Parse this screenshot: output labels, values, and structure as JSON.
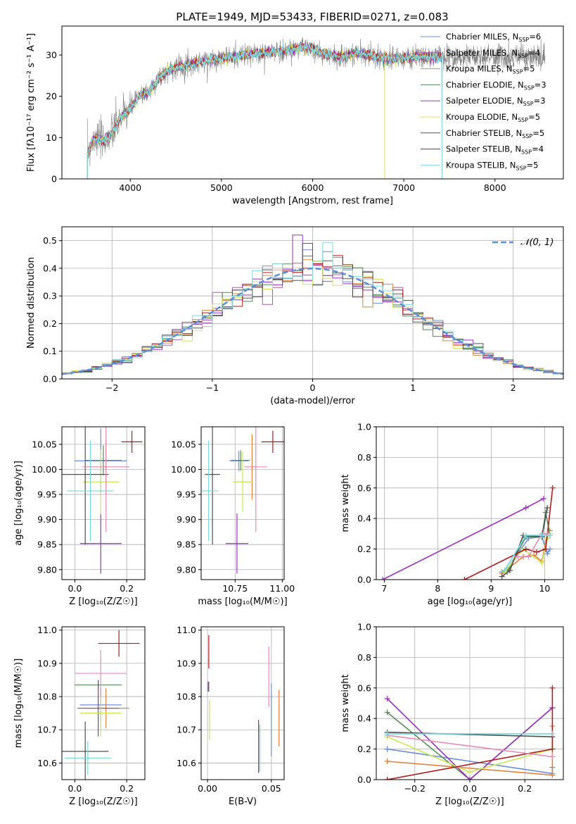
{
  "figure_title": "PLATE=1949, MJD=53433, FIBERID=0271, z=0.083",
  "model_colors": [
    "#6a8fd8",
    "#a65fb0",
    "#d98a3a",
    "#4f8a5a",
    "#9b30c0",
    "#d8e060",
    "#555555",
    "#b01c1c",
    "#80d8e0"
  ],
  "panel_colors": [
    "#6a8fd8",
    "#e07f3a",
    "#5a8a5a",
    "#9b30c0",
    "#c8e850",
    "#505050",
    "#b01c1c",
    "#e88ab8",
    "#70d8e0"
  ],
  "chart_data": [
    {
      "id": "spectrum",
      "type": "line",
      "xlabel": "wavelength [Angstrom, rest frame]",
      "ylabel": "Flux [fλ10⁻¹⁷ erg cm⁻² s⁻¹ A⁻¹]",
      "xlim": [
        3250,
        8750
      ],
      "ylim": [
        0,
        37
      ],
      "xticks": [
        4000,
        5000,
        6000,
        7000,
        8000
      ],
      "yticks": [
        0,
        10,
        20,
        30
      ],
      "grid": false,
      "legend_position": "top-right",
      "legend": [
        {
          "label": "Chabrier MILES, N",
          "sub": "SSP",
          "suffix": "=6"
        },
        {
          "label": "Salpeter MILES, N",
          "sub": "SSP",
          "suffix": "=4"
        },
        {
          "label": "Kroupa MILES, N",
          "sub": "SSP",
          "suffix": "=5"
        },
        {
          "label": "Chabrier ELODIE, N",
          "sub": "SSP",
          "suffix": "=3"
        },
        {
          "label": "Salpeter ELODIE, N",
          "sub": "SSP",
          "suffix": "=3"
        },
        {
          "label": "Kroupa ELODIE, N",
          "sub": "SSP",
          "suffix": "=5"
        },
        {
          "label": "Chabrier STELIB, N",
          "sub": "SSP",
          "suffix": "=5"
        },
        {
          "label": "Salpeter STELIB, N",
          "sub": "SSP",
          "suffix": "=4"
        },
        {
          "label": "Kroupa STELIB, N",
          "sub": "SSP",
          "suffix": "=5"
        }
      ],
      "continuum": {
        "x": [
          3530,
          3600,
          3700,
          3800,
          3900,
          4000,
          4100,
          4200,
          4300,
          4400,
          4500,
          4700,
          4900,
          5100,
          5300,
          5500,
          5700,
          5900,
          6100,
          6300,
          6500,
          6700,
          6900,
          7100,
          7300,
          7420
        ],
        "y": [
          6,
          10,
          9,
          11,
          15,
          17,
          20,
          21,
          24,
          26,
          27,
          28,
          29,
          29.5,
          30,
          30.5,
          31,
          32,
          30.5,
          29.5,
          30.5,
          29.5,
          29,
          29.5,
          29.5,
          29.5
        ]
      },
      "observed_extent": [
        3530,
        8550
      ]
    },
    {
      "id": "residuals",
      "type": "histogram",
      "xlabel": "(data-model)/error",
      "ylabel": "Normed distribution",
      "xlim": [
        -2.5,
        2.5
      ],
      "ylim": [
        0,
        0.55
      ],
      "xticks": [
        -2,
        -1,
        0,
        1,
        2
      ],
      "yticks": [
        0.0,
        0.1,
        0.2,
        0.3,
        0.4,
        0.5
      ],
      "grid": true,
      "legend_position": "top-right",
      "reference_label": "𝒩(0, 1)",
      "reference": "normal(0,1)",
      "bin_width": 0.1,
      "spike_values": {
        "-0.2": 0.52,
        "-0.1": 0.49,
        "0.1": 0.46,
        "0.5": 0.42,
        "0.6": 0.39,
        "0.5b": 0.26
      }
    },
    {
      "id": "age_vs_Z",
      "type": "errorbar",
      "xlabel": "Z [log₁₀(Z/Z☉)]",
      "ylabel": "age  [log₁₀(age/yr)]",
      "xlim": [
        -0.05,
        0.27
      ],
      "ylim": [
        9.78,
        10.085
      ],
      "xticks": [
        0.0,
        0.2
      ],
      "xticklabels": [
        "0.0",
        "0.2"
      ],
      "yticks": [
        9.8,
        9.85,
        9.9,
        9.95,
        10.0,
        10.05
      ],
      "yticklabels": [
        "9.80",
        "9.85",
        "9.90",
        "9.95",
        "10.00",
        "10.05"
      ],
      "grid": true,
      "points": [
        {
          "x": 0.1,
          "y": 10.017,
          "xerr": 0.1,
          "yerr": 0.065
        },
        {
          "x": 0.12,
          "y": 10.005,
          "xerr": 0.09,
          "yerr": 0.055
        },
        {
          "x": 0.11,
          "y": 10.018,
          "xerr": 0.07,
          "yerr": 0.03
        },
        {
          "x": 0.1,
          "y": 9.852,
          "xerr": 0.08,
          "yerr": 0.06
        },
        {
          "x": 0.1,
          "y": 9.975,
          "xerr": 0.07,
          "yerr": 0.065
        },
        {
          "x": 0.04,
          "y": 9.99,
          "xerr": 0.09,
          "yerr": 0.14
        },
        {
          "x": 0.22,
          "y": 10.055,
          "xerr": 0.04,
          "yerr": 0.022
        },
        {
          "x": 0.12,
          "y": 10.005,
          "xerr": 0.09,
          "yerr": 0.13
        },
        {
          "x": 0.06,
          "y": 9.957,
          "xerr": 0.09,
          "yerr": 0.1
        }
      ]
    },
    {
      "id": "age_vs_mass",
      "type": "errorbar",
      "xlabel": "mass [log₁₀(M/M☉)]",
      "ylabel": "",
      "xlim": [
        10.57,
        11.01
      ],
      "ylim": [
        9.78,
        10.085
      ],
      "xticks": [
        10.75,
        11.0
      ],
      "xticklabels": [
        "10.75",
        "11.00"
      ],
      "yticks": [
        9.8,
        9.85,
        9.9,
        9.95,
        10.0,
        10.05
      ],
      "yticklabels": [
        "9.80",
        "9.85",
        "9.90",
        "9.95",
        "10.00",
        "10.05"
      ],
      "grid": true,
      "points": [
        {
          "x": 10.77,
          "y": 10.017,
          "xerr": 0.05,
          "yerr": 0.02
        },
        {
          "x": 10.84,
          "y": 10.005,
          "xerr": 0.04,
          "yerr": 0.065
        },
        {
          "x": 10.78,
          "y": 10.018,
          "xerr": 0.05,
          "yerr": 0.02
        },
        {
          "x": 10.76,
          "y": 9.852,
          "xerr": 0.06,
          "yerr": 0.06
        },
        {
          "x": 10.79,
          "y": 9.975,
          "xerr": 0.05,
          "yerr": 0.06
        },
        {
          "x": 10.63,
          "y": 9.99,
          "xerr": 0.04,
          "yerr": 0.14
        },
        {
          "x": 10.95,
          "y": 10.055,
          "xerr": 0.06,
          "yerr": 0.022
        },
        {
          "x": 10.86,
          "y": 10.005,
          "xerr": 0.06,
          "yerr": 0.13
        },
        {
          "x": 10.61,
          "y": 9.957,
          "xerr": 0.05,
          "yerr": 0.1
        }
      ]
    },
    {
      "id": "weight_vs_age",
      "type": "line",
      "xlabel": "age  [log₁₀(age/yr)]",
      "ylabel": "mass weight",
      "xlim": [
        6.85,
        10.35
      ],
      "ylim": [
        0,
        1.0
      ],
      "xticks": [
        7,
        8,
        9,
        10
      ],
      "yticks": [
        0.0,
        0.2,
        0.4,
        0.6,
        0.8,
        1.0
      ],
      "grid": true,
      "series": [
        {
          "x": [
            9.2,
            9.3,
            9.7,
            9.95,
            10.05,
            10.1
          ],
          "y": [
            0.05,
            0.07,
            0.27,
            0.28,
            0.17,
            0.2
          ]
        },
        {
          "x": [
            9.2,
            9.6,
            9.8,
            9.95,
            10.05,
            10.1
          ],
          "y": [
            0.04,
            0.15,
            0.16,
            0.12,
            0.3,
            0.32
          ]
        },
        {
          "x": [
            9.3,
            9.65,
            9.95,
            10.02,
            10.1
          ],
          "y": [
            0.05,
            0.28,
            0.28,
            0.44,
            0.29
          ]
        },
        {
          "x": [
            6.97,
            9.65,
            9.98
          ],
          "y": [
            0.0,
            0.47,
            0.53
          ]
        },
        {
          "x": [
            9.25,
            9.6,
            9.95,
            10.05,
            10.1
          ],
          "y": [
            0.05,
            0.2,
            0.11,
            0.27,
            0.3
          ]
        },
        {
          "x": [
            9.2,
            9.35,
            9.6,
            9.95,
            10.05
          ],
          "y": [
            0.02,
            0.06,
            0.29,
            0.28,
            0.47
          ]
        },
        {
          "x": [
            8.5,
            9.65,
            9.85,
            10.02,
            10.15
          ],
          "y": [
            0.0,
            0.2,
            0.18,
            0.2,
            0.6
          ]
        },
        {
          "x": [
            9.5,
            9.7,
            9.95,
            10.05
          ],
          "y": [
            0.15,
            0.15,
            0.3,
            0.3
          ]
        },
        {
          "x": [
            9.25,
            9.65,
            9.95,
            10.1
          ],
          "y": [
            0.06,
            0.29,
            0.29,
            0.29
          ]
        }
      ]
    },
    {
      "id": "mass_vs_Z",
      "type": "errorbar",
      "xlabel": "Z [log₁₀(Z/Z☉)]",
      "ylabel": "mass [log₁₀(M/M☉)]",
      "xlim": [
        -0.05,
        0.27
      ],
      "ylim": [
        10.55,
        11.01
      ],
      "xticks": [
        0.0,
        0.2
      ],
      "xticklabels": [
        "0.0",
        "0.2"
      ],
      "yticks": [
        10.6,
        10.7,
        10.8,
        10.9,
        11.0
      ],
      "yticklabels": [
        "10.6",
        "10.7",
        "10.8",
        "10.9",
        "11.0"
      ],
      "grid": true,
      "points": [
        {
          "x": 0.1,
          "y": 10.775,
          "xerr": 0.08,
          "yerr": 0.05
        },
        {
          "x": 0.12,
          "y": 10.765,
          "xerr": 0.09,
          "yerr": 0.06
        },
        {
          "x": 0.09,
          "y": 10.835,
          "xerr": 0.09,
          "yerr": 0.015
        },
        {
          "x": 0.09,
          "y": 10.765,
          "xerr": 0.08,
          "yerr": 0.085
        },
        {
          "x": 0.1,
          "y": 10.75,
          "xerr": 0.08,
          "yerr": 0.07
        },
        {
          "x": 0.04,
          "y": 10.635,
          "xerr": 0.09,
          "yerr": 0.09
        },
        {
          "x": 0.17,
          "y": 10.96,
          "xerr": 0.08,
          "yerr": 0.04
        },
        {
          "x": 0.1,
          "y": 10.87,
          "xerr": 0.1,
          "yerr": 0.07
        },
        {
          "x": 0.05,
          "y": 10.615,
          "xerr": 0.09,
          "yerr": 0.05
        }
      ]
    },
    {
      "id": "mass_vs_EBV",
      "type": "errorbar",
      "xlabel": "E(B-V)",
      "ylabel": "",
      "xlim": [
        -0.005,
        0.06
      ],
      "ylim": [
        10.55,
        11.01
      ],
      "xticks": [
        0.0,
        0.05
      ],
      "xticklabels": [
        "0.00",
        "0.05"
      ],
      "yticks": [
        10.6,
        10.7,
        10.8,
        10.9,
        11.0
      ],
      "yticklabels": [
        "10.6",
        "10.7",
        "10.8",
        "10.9",
        "11.0"
      ],
      "grid": true,
      "points": [
        {
          "x": 0.05,
          "y": 10.73,
          "xerr": 0,
          "yerr": 0.11
        },
        {
          "x": 0.056,
          "y": 10.735,
          "xerr": 0,
          "yerr": 0.085
        },
        {
          "x": 0.001,
          "y": 10.83,
          "xerr": 0,
          "yerr": 0.015
        },
        {
          "x": 0.0005,
          "y": 10.83,
          "xerr": 0,
          "yerr": 0.015
        },
        {
          "x": 0.0015,
          "y": 10.73,
          "xerr": 0,
          "yerr": 0.06
        },
        {
          "x": 0.04,
          "y": 10.65,
          "xerr": 0,
          "yerr": 0.08
        },
        {
          "x": 0.001,
          "y": 10.935,
          "xerr": 0,
          "yerr": 0.05
        },
        {
          "x": 0.048,
          "y": 10.86,
          "xerr": 0,
          "yerr": 0.09
        },
        {
          "x": 0.041,
          "y": 10.645,
          "xerr": 0,
          "yerr": 0.07
        }
      ]
    },
    {
      "id": "weight_vs_Z",
      "type": "line",
      "xlabel": "Z [log₁₀(Z/Z☉)]",
      "ylabel": "mass weight",
      "xlim": [
        -0.34,
        0.34
      ],
      "ylim": [
        0,
        1.0
      ],
      "xticks": [
        -0.2,
        0.0,
        0.2
      ],
      "xticklabels": [
        "−0.2",
        "0.0",
        "0.2"
      ],
      "yticks": [
        0.0,
        0.2,
        0.4,
        0.6,
        0.8,
        1.0
      ],
      "grid": true,
      "series": [
        {
          "x": [
            -0.3,
            -0.3,
            0.3,
            0.3
          ],
          "y": [
            0.2,
            0.2,
            0.04,
            0.08
          ]
        },
        {
          "x": [
            -0.3,
            -0.3,
            0.3,
            0.3
          ],
          "y": [
            0.12,
            0.12,
            0.03,
            0.35
          ]
        },
        {
          "x": [
            -0.3,
            0.0,
            0.3
          ],
          "y": [
            0.44,
            0.0,
            0.47
          ]
        },
        {
          "x": [
            -0.3,
            0.0,
            0.3
          ],
          "y": [
            0.53,
            0.0,
            0.47
          ]
        },
        {
          "x": [
            -0.3,
            0.0,
            0.3
          ],
          "y": [
            0.28,
            0.05,
            0.2
          ]
        },
        {
          "x": [
            -0.3,
            0.3
          ],
          "y": [
            0.31,
            0.28
          ]
        },
        {
          "x": [
            -0.3,
            -0.3,
            0.3,
            0.3
          ],
          "y": [
            0.0,
            0.0,
            0.2,
            0.6
          ]
        },
        {
          "x": [
            -0.3,
            0.3
          ],
          "y": [
            0.29,
            0.15
          ]
        },
        {
          "x": [
            -0.3,
            0.3
          ],
          "y": [
            0.3,
            0.3
          ]
        }
      ]
    }
  ]
}
